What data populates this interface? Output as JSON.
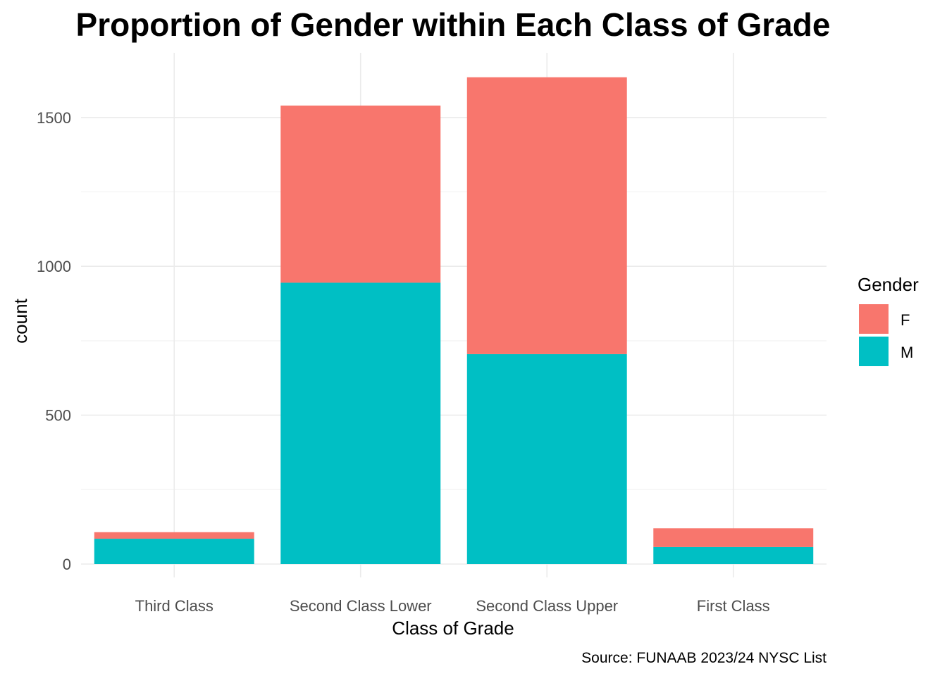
{
  "chart_data": {
    "type": "bar",
    "stacked": true,
    "title": "Proportion of Gender within Each Class of Grade",
    "xlabel": "Class of Grade",
    "ylabel": "count",
    "caption": "Source: FUNAAB 2023/24 NYSC List",
    "categories": [
      "Third Class",
      "Second Class Lower",
      "Second Class Upper",
      "First Class"
    ],
    "series": [
      {
        "name": "M",
        "color": "#00BFC4",
        "values": [
          85,
          945,
          705,
          57
        ]
      },
      {
        "name": "F",
        "color": "#F8766D",
        "values": [
          22,
          595,
          930,
          63
        ]
      }
    ],
    "ylim": [
      0,
      1650
    ],
    "yticks": [
      0,
      500,
      1000,
      1500
    ],
    "legend": {
      "title": "Gender",
      "entries": [
        "F",
        "M"
      ],
      "position": "right"
    },
    "grid": true
  }
}
